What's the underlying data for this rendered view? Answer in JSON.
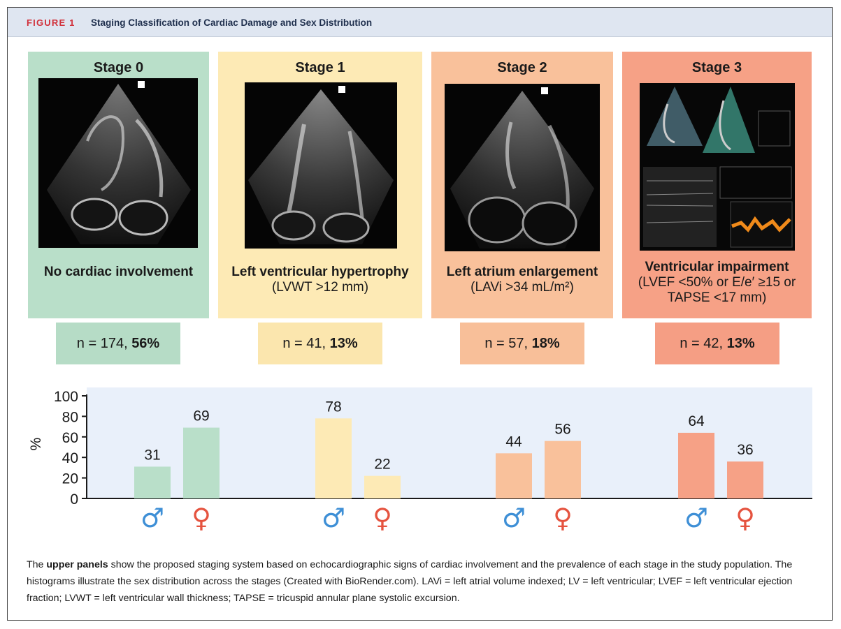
{
  "figure": {
    "label": "FIGURE 1",
    "title": "Staging Classification of Cardiac Damage and Sex Distribution"
  },
  "panels": [
    {
      "stage": "Stage 0",
      "desc_main": "No cardiac involvement",
      "desc_sub": "",
      "n_text": "n = 174, ",
      "pct_text": "56%",
      "color": "#b9dfc9",
      "count_color": "#b6dcc6"
    },
    {
      "stage": "Stage 1",
      "desc_main": "Left ventricular hypertrophy",
      "desc_sub": "(LVWT >12 mm)",
      "n_text": "n = 41, ",
      "pct_text": "13%",
      "color": "#fdeab5",
      "count_color": "#fbe6ae"
    },
    {
      "stage": "Stage 2",
      "desc_main": "Left atrium enlargement",
      "desc_sub": "(LAVi >34 mL/m²)",
      "n_text": "n = 57, ",
      "pct_text": "18%",
      "color": "#f9c19b",
      "count_color": "#f8bf99"
    },
    {
      "stage": "Stage 3",
      "desc_main": "Ventricular impairment",
      "desc_sub": "(LVEF <50% or E/e′ ≥15 or TAPSE <17 mm)",
      "n_text": "n = 42, ",
      "pct_text": "13%",
      "color": "#f6a186",
      "count_color": "#f59e84"
    }
  ],
  "chart_data": {
    "type": "bar",
    "categories": [
      "Stage 0",
      "Stage 1",
      "Stage 2",
      "Stage 3"
    ],
    "series": [
      {
        "name": "male",
        "values": [
          31,
          78,
          44,
          64
        ]
      },
      {
        "name": "female",
        "values": [
          69,
          22,
          56,
          36
        ]
      }
    ],
    "ylabel": "%",
    "ylim": [
      0,
      100
    ],
    "yticks": [
      0,
      20,
      40,
      60,
      80,
      100
    ],
    "bar_colors": [
      "#b9dfc9",
      "#fdeab5",
      "#f9c19b",
      "#f6a186"
    ],
    "male_symbol": "♂",
    "female_symbol": "♀",
    "male_color": "#3e8fd6",
    "female_color": "#e5533f",
    "plot_background": "#e9f0fa"
  },
  "caption": {
    "bold_lead": "upper panels",
    "pre": "The ",
    "rest": " show the proposed staging system based on echocardiographic signs of cardiac involvement and the prevalence of each stage in the study population. The histograms illustrate the sex distribution across the stages (Created with BioRender.com). LAVi = left atrial volume indexed; LV = left ventricular; LVEF = left ventricular ejection fraction; LVWT = left ventricular wall thickness; TAPSE = tricuspid annular plane systolic excursion."
  }
}
